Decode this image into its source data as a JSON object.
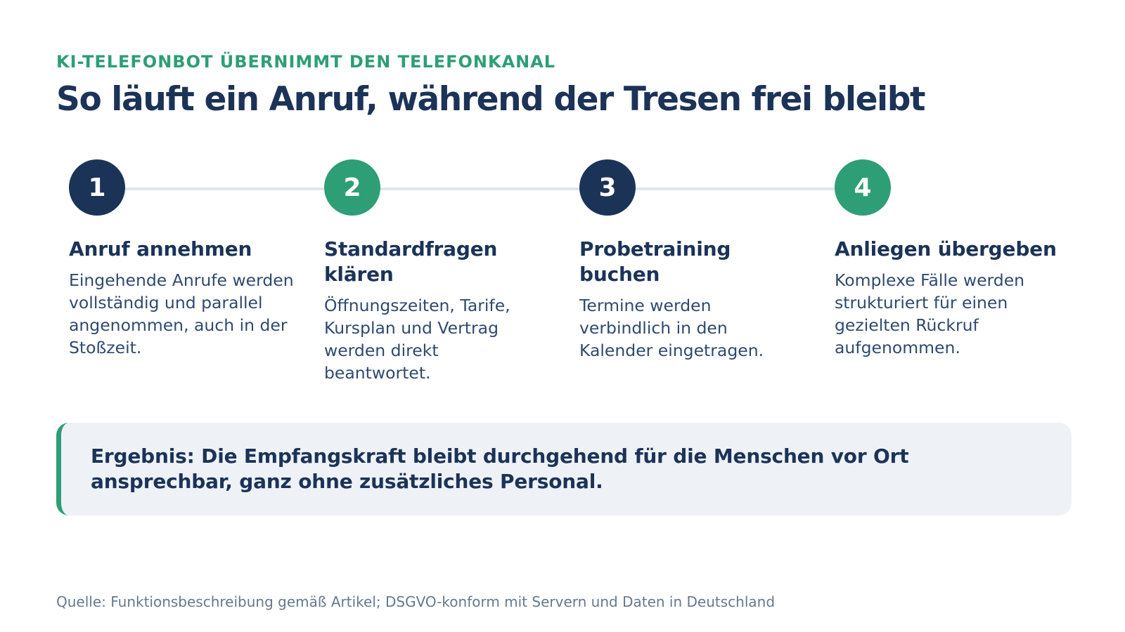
{
  "header": {
    "eyebrow": "KI-TELEFONBOT ÜBERNIMMT DEN TELEFONKANAL",
    "title": "So läuft ein Anruf, während der Tresen frei bleibt"
  },
  "steps": [
    {
      "number": "1",
      "title": "Anruf annehmen",
      "description": "Eingehende Anrufe werden vollständig und parallel angenommen, auch in der Stoßzeit.",
      "color": "#1c3358"
    },
    {
      "number": "2",
      "title": "Standardfragen klären",
      "description": "Öffnungszeiten, Tarife, Kursplan und Vertrag werden direkt beantwortet.",
      "color": "#2e9e76"
    },
    {
      "number": "3",
      "title": "Probetraining buchen",
      "description": "Termine werden verbindlich in den Kalender eingetragen.",
      "color": "#1c3358"
    },
    {
      "number": "4",
      "title": "Anliegen übergeben",
      "description": "Komplexe Fälle werden strukturiert für einen gezielten Rückruf aufgenommen.",
      "color": "#2e9e76"
    }
  ],
  "result": {
    "text": "Ergebnis: Die Empfangskraft bleibt durchgehend für die Menschen vor Ort ansprechbar, ganz ohne zusätzliches Personal."
  },
  "footer": {
    "source": "Quelle: Funktionsbeschreibung gemäß Artikel; DSGVO-konform mit Servern und Daten in Deutschland"
  },
  "colors": {
    "navy": "#1c3358",
    "green": "#2e9e76",
    "track": "#dfe5ec",
    "result_bg": "#eef2f7"
  }
}
